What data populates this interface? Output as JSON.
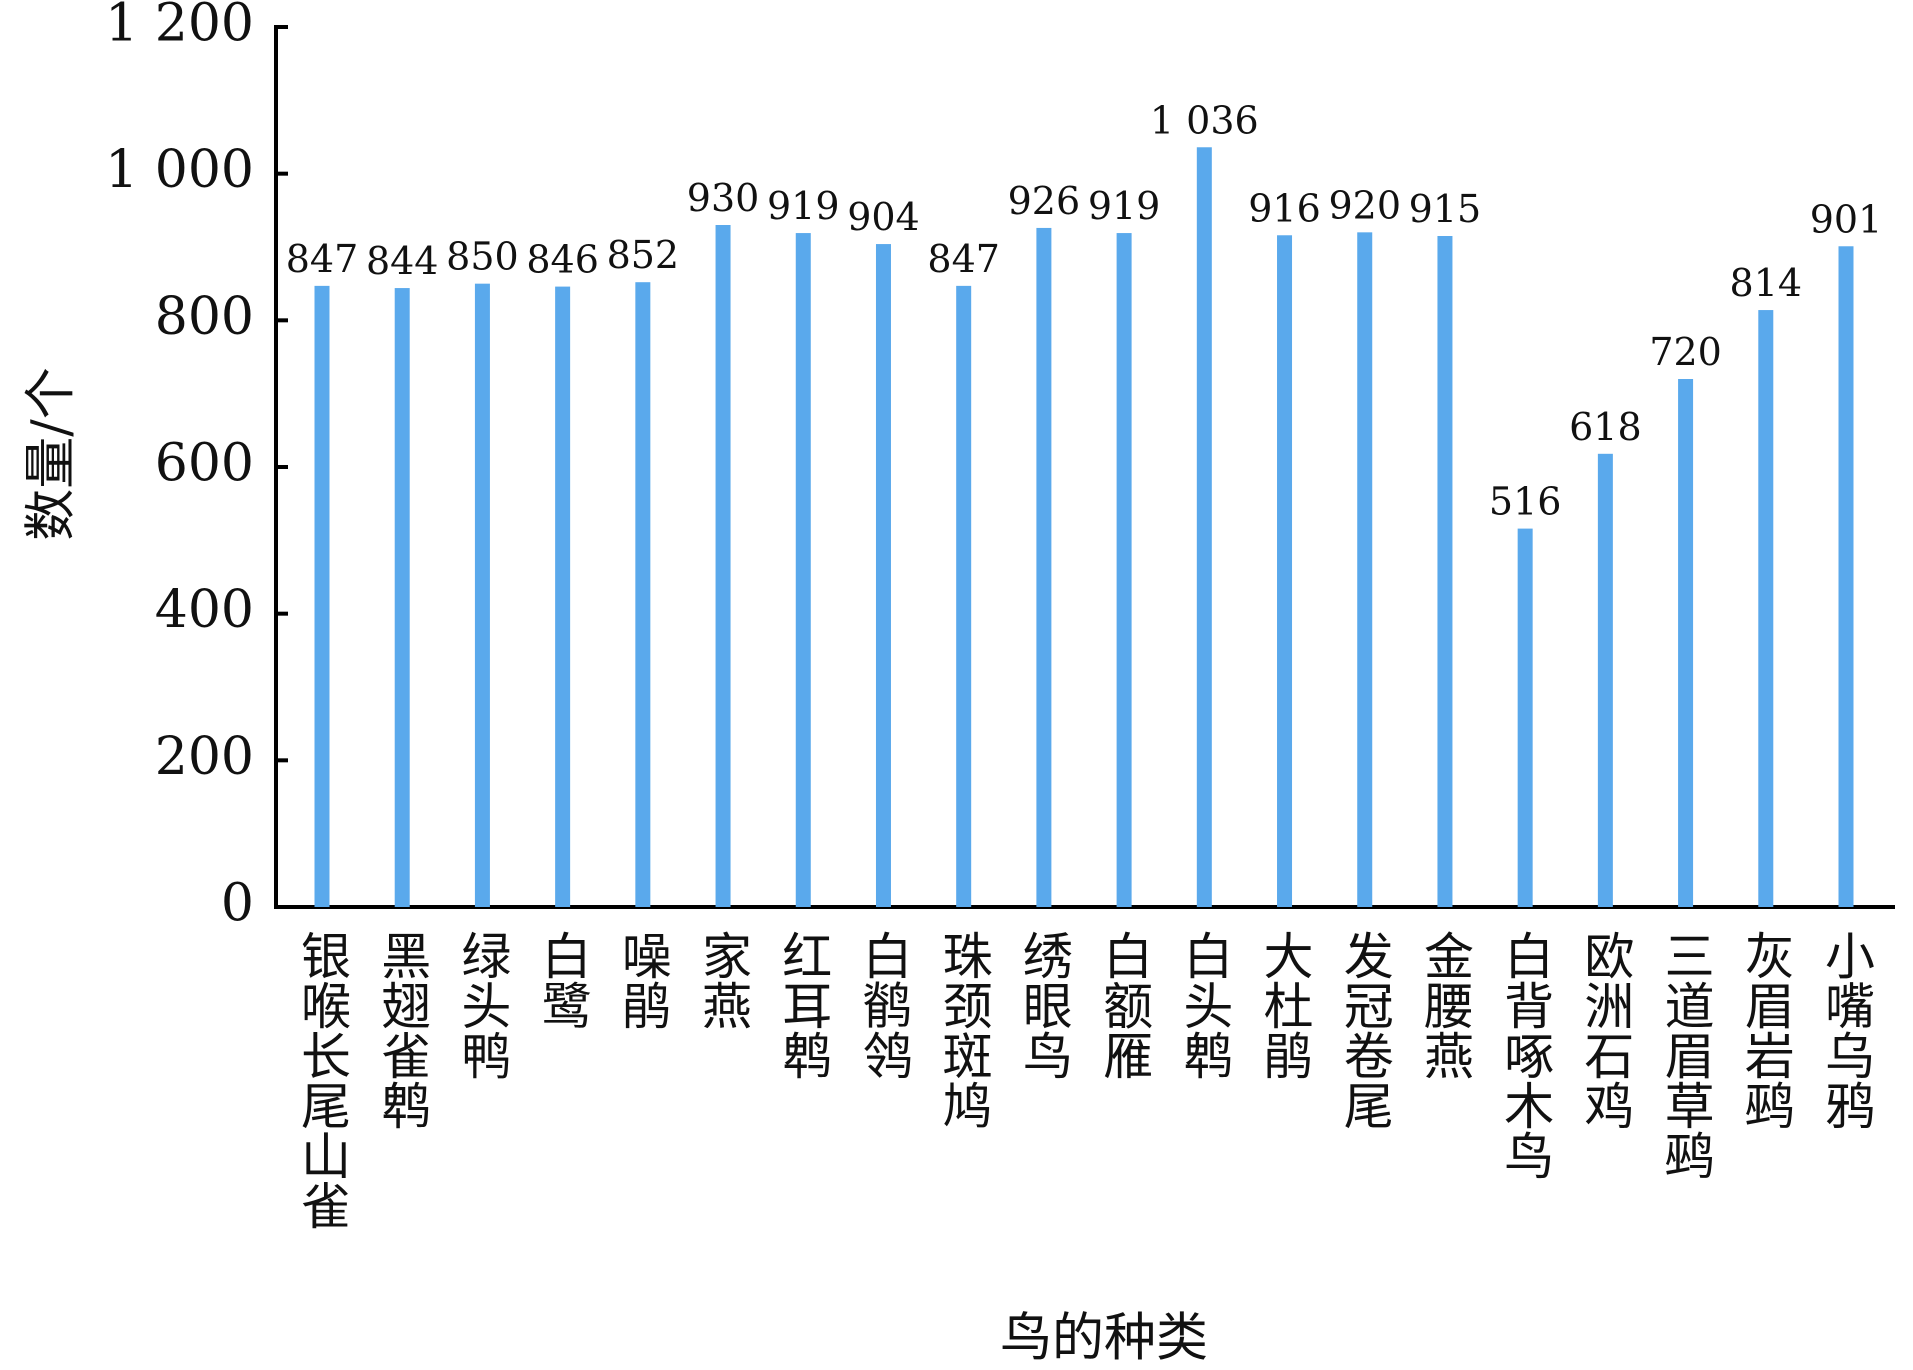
{
  "chart_data": {
    "type": "bar",
    "x_label": "鸟的种类",
    "y_label": "数量/个",
    "categories": [
      "银喉长尾山雀",
      "黑翅雀鹎",
      "绿头鸭",
      "白鹭",
      "噪鹃",
      "家燕",
      "红耳鹎",
      "白鹡鸰",
      "珠颈斑鸠",
      "绣眼鸟",
      "白额雁",
      "白头鹎",
      "大杜鹃",
      "发冠卷尾",
      "金腰燕",
      "白背啄木鸟",
      "欧洲石鸡",
      "三道眉草鹀",
      "灰眉岩鹀",
      "小嘴乌鸦"
    ],
    "values": [
      847,
      844,
      850,
      846,
      852,
      930,
      919,
      904,
      847,
      926,
      919,
      1036,
      916,
      920,
      915,
      516,
      618,
      720,
      814,
      901
    ],
    "value_labels": [
      "847",
      "844",
      "850",
      "846",
      "852",
      "930",
      "919",
      "904",
      "847",
      "926",
      "919",
      "1 036",
      "916",
      "920",
      "915",
      "516",
      "618",
      "720",
      "814",
      "901"
    ],
    "color": "#5aa9ec",
    "ylim": [
      0,
      1200
    ],
    "yticks": [
      0,
      200,
      400,
      600,
      800,
      {
        "value": 1000,
        "label": "1 000"
      },
      {
        "value": 1200,
        "label": "1 200"
      }
    ],
    "grid": false
  }
}
